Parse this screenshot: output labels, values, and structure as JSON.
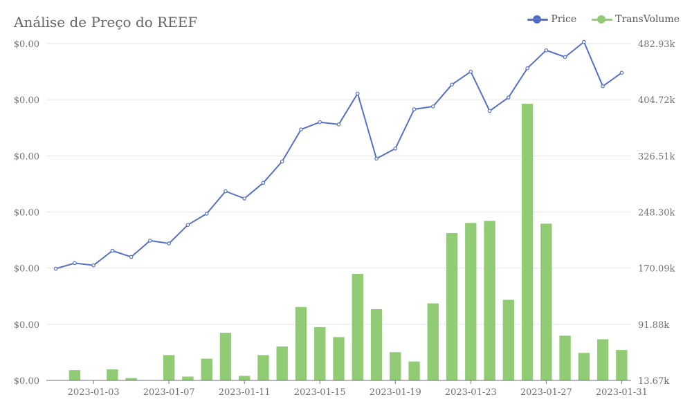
{
  "chart_data": {
    "type": "bar+line",
    "title": "Análise de Preço do REEF",
    "legend_position": "top-right",
    "grid": true,
    "x": [
      "2023-01-01",
      "2023-01-02",
      "2023-01-03",
      "2023-01-04",
      "2023-01-05",
      "2023-01-06",
      "2023-01-07",
      "2023-01-08",
      "2023-01-09",
      "2023-01-10",
      "2023-01-11",
      "2023-01-12",
      "2023-01-13",
      "2023-01-14",
      "2023-01-15",
      "2023-01-16",
      "2023-01-17",
      "2023-01-18",
      "2023-01-19",
      "2023-01-20",
      "2023-01-21",
      "2023-01-22",
      "2023-01-23",
      "2023-01-24",
      "2023-01-25",
      "2023-01-26",
      "2023-01-27",
      "2023-01-28",
      "2023-01-29",
      "2023-01-30",
      "2023-01-31"
    ],
    "x_ticks": [
      "2023-01-03",
      "2023-01-07",
      "2023-01-11",
      "2023-01-15",
      "2023-01-19",
      "2023-01-23",
      "2023-01-27",
      "2023-01-31"
    ],
    "left_axis": {
      "tick_labels": [
        "$0.00",
        "$0.00",
        "$0.00",
        "$0.00",
        "$0.00",
        "$0.00",
        "$0.00"
      ],
      "range": [
        0,
        6
      ]
    },
    "right_axis": {
      "tick_labels": [
        "13.67k",
        "91.88k",
        "170.09k",
        "248.30k",
        "326.51k",
        "404.72k",
        "482.93k"
      ],
      "range": [
        13670,
        482930
      ]
    },
    "series": [
      {
        "name": "Price",
        "type": "line",
        "axis": "left",
        "color": "#5470c6",
        "values": [
          1.99,
          2.09,
          2.05,
          2.31,
          2.2,
          2.49,
          2.44,
          2.77,
          2.97,
          3.37,
          3.24,
          3.52,
          3.9,
          4.47,
          4.6,
          4.56,
          5.11,
          3.95,
          4.13,
          4.83,
          4.88,
          5.27,
          5.5,
          4.8,
          5.04,
          5.56,
          5.88,
          5.76,
          6.03,
          5.24,
          5.48
        ]
      },
      {
        "name": "TransVolume",
        "type": "bar",
        "axis": "right",
        "color": "#91cc75",
        "values": [
          13670,
          28000,
          13670,
          29000,
          17000,
          13670,
          49000,
          19000,
          44000,
          80000,
          20000,
          49000,
          61000,
          116000,
          88000,
          74000,
          162000,
          113000,
          53000,
          40000,
          121000,
          219000,
          233000,
          236000,
          126000,
          399000,
          232000,
          76000,
          52000,
          71000,
          56000
        ]
      }
    ]
  }
}
